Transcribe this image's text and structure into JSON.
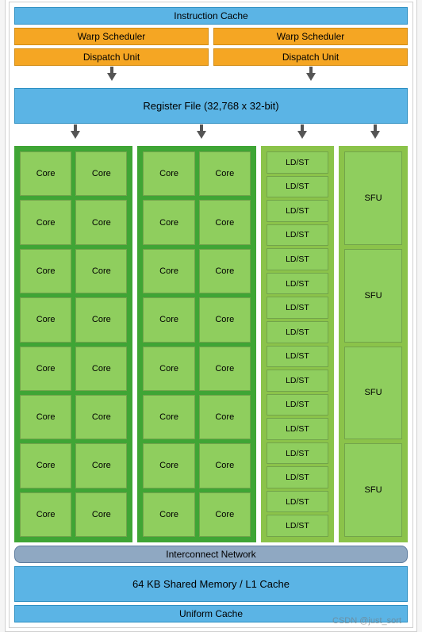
{
  "colors": {
    "blue": "#5bb4e5",
    "blue_border": "#2d8fc2",
    "orange": "#f5a623",
    "orange_border": "#d18c14",
    "green_dark": "#3fa535",
    "green_light": "#8bc34a",
    "green_cell": "#8fce5e",
    "slate": "#8fa8c2",
    "slate_border": "#5f7d9e",
    "white": "#ffffff"
  },
  "blocks": {
    "instruction_cache": "Instruction Cache",
    "warp_scheduler": "Warp Scheduler",
    "dispatch_unit": "Dispatch Unit",
    "register_file": "Register File (32,768 x 32-bit)",
    "interconnect": "Interconnect Network",
    "shared_mem": "64 KB Shared Memory / L1 Cache",
    "uniform_cache": "Uniform Cache"
  },
  "units": {
    "core": "Core",
    "ldst": "LD/ST",
    "sfu": "SFU"
  },
  "layout": {
    "core_columns": 2,
    "cores_per_column": 16,
    "ldst_count": 16,
    "sfu_count": 4
  },
  "watermark": "CSDN @just_sort"
}
